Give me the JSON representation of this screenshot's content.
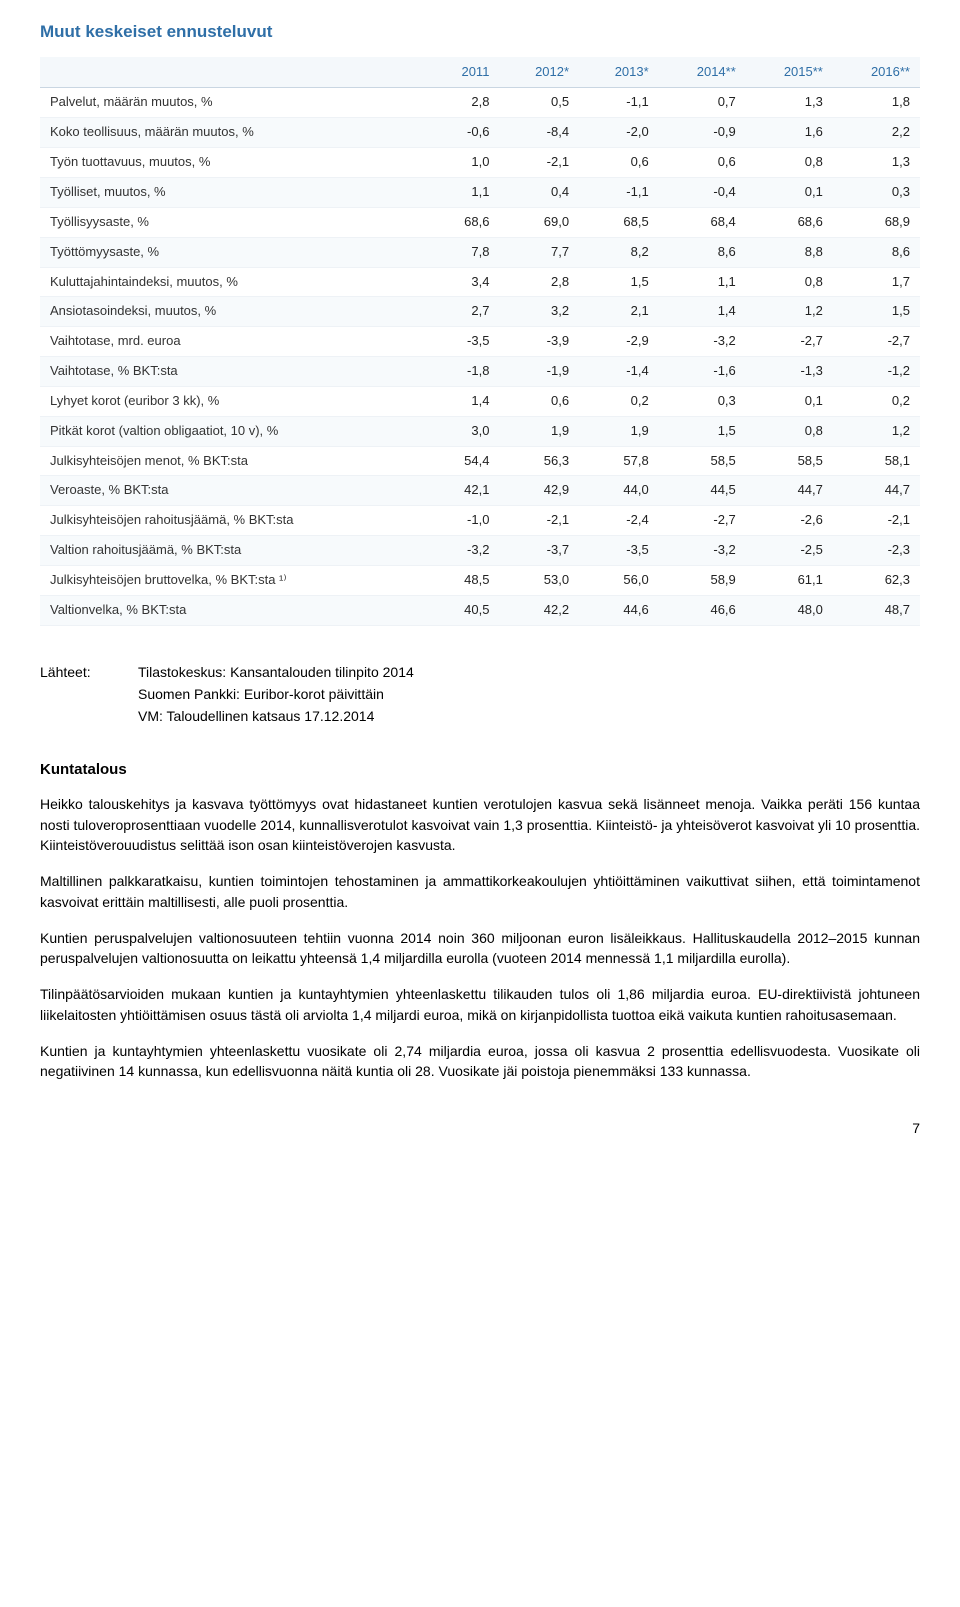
{
  "title": "Muut keskeiset ennusteluvut",
  "table": {
    "columns": [
      "",
      "2011",
      "2012*",
      "2013*",
      "2014**",
      "2015**",
      "2016**"
    ],
    "rows": [
      {
        "label": "Palvelut, määrän muutos, %",
        "vals": [
          "2,8",
          "0,5",
          "-1,1",
          "0,7",
          "1,3",
          "1,8"
        ]
      },
      {
        "label": "Koko teollisuus, määrän muutos, %",
        "vals": [
          "-0,6",
          "-8,4",
          "-2,0",
          "-0,9",
          "1,6",
          "2,2"
        ]
      },
      {
        "label": "Työn tuottavuus, muutos, %",
        "vals": [
          "1,0",
          "-2,1",
          "0,6",
          "0,6",
          "0,8",
          "1,3"
        ]
      },
      {
        "label": "Työlliset, muutos, %",
        "vals": [
          "1,1",
          "0,4",
          "-1,1",
          "-0,4",
          "0,1",
          "0,3"
        ]
      },
      {
        "label": "Työllisyysaste, %",
        "vals": [
          "68,6",
          "69,0",
          "68,5",
          "68,4",
          "68,6",
          "68,9"
        ]
      },
      {
        "label": "Työttömyysaste, %",
        "vals": [
          "7,8",
          "7,7",
          "8,2",
          "8,6",
          "8,8",
          "8,6"
        ]
      },
      {
        "label": "Kuluttajahintaindeksi, muutos, %",
        "vals": [
          "3,4",
          "2,8",
          "1,5",
          "1,1",
          "0,8",
          "1,7"
        ]
      },
      {
        "label": "Ansiotasoindeksi, muutos, %",
        "vals": [
          "2,7",
          "3,2",
          "2,1",
          "1,4",
          "1,2",
          "1,5"
        ]
      },
      {
        "label": "Vaihtotase, mrd. euroa",
        "vals": [
          "-3,5",
          "-3,9",
          "-2,9",
          "-3,2",
          "-2,7",
          "-2,7"
        ]
      },
      {
        "label": "Vaihtotase, % BKT:sta",
        "vals": [
          "-1,8",
          "-1,9",
          "-1,4",
          "-1,6",
          "-1,3",
          "-1,2"
        ]
      },
      {
        "label": "Lyhyet korot (euribor 3 kk), %",
        "vals": [
          "1,4",
          "0,6",
          "0,2",
          "0,3",
          "0,1",
          "0,2"
        ]
      },
      {
        "label": "Pitkät korot (valtion obligaatiot, 10 v), %",
        "vals": [
          "3,0",
          "1,9",
          "1,9",
          "1,5",
          "0,8",
          "1,2"
        ]
      },
      {
        "label": "Julkisyhteisöjen menot, % BKT:sta",
        "vals": [
          "54,4",
          "56,3",
          "57,8",
          "58,5",
          "58,5",
          "58,1"
        ]
      },
      {
        "label": "Veroaste, % BKT:sta",
        "vals": [
          "42,1",
          "42,9",
          "44,0",
          "44,5",
          "44,7",
          "44,7"
        ]
      },
      {
        "label": "Julkisyhteisöjen rahoitusjäämä, % BKT:sta",
        "vals": [
          "-1,0",
          "-2,1",
          "-2,4",
          "-2,7",
          "-2,6",
          "-2,1"
        ]
      },
      {
        "label": "Valtion rahoitusjäämä, % BKT:sta",
        "vals": [
          "-3,2",
          "-3,7",
          "-3,5",
          "-3,2",
          "-2,5",
          "-2,3"
        ]
      },
      {
        "label": "Julkisyhteisöjen bruttovelka, % BKT:sta ¹⁾",
        "vals": [
          "48,5",
          "53,0",
          "56,0",
          "58,9",
          "61,1",
          "62,3"
        ]
      },
      {
        "label": "Valtionvelka, % BKT:sta",
        "vals": [
          "40,5",
          "42,2",
          "44,6",
          "46,6",
          "48,0",
          "48,7"
        ]
      }
    ],
    "header_color": "#2f6fa7",
    "row_alt_bg": "#f7fafc",
    "border_color": "#eef2f6"
  },
  "sources": {
    "label": "Lähteet:",
    "items": [
      "Tilastokeskus: Kansantalouden tilinpito 2014",
      "Suomen Pankki: Euribor-korot päivittäin",
      "VM: Taloudellinen katsaus 17.12.2014"
    ]
  },
  "section_heading": "Kuntatalous",
  "paragraphs": [
    "Heikko talouskehitys ja kasvava työttömyys ovat hidastaneet kuntien verotulojen kasvua sekä lisänneet menoja. Vaikka peräti 156 kuntaa nosti tuloveroprosenttiaan vuodelle 2014, kunnallisverotulot kasvoivat vain 1,3 prosenttia. Kiinteistö- ja yhteisöverot kasvoivat yli 10 prosenttia. Kiinteistöverouudistus selittää ison osan kiinteistöverojen kasvusta.",
    "Maltillinen palkkaratkaisu, kuntien toimintojen tehostaminen ja ammattikorkeakoulujen yhtiöittäminen vaikuttivat siihen, että toimintamenot kasvoivat erittäin maltillisesti, alle puoli prosenttia.",
    "Kuntien peruspalvelujen valtionosuuteen tehtiin vuonna 2014 noin 360 miljoonan euron lisäleikkaus. Hallituskaudella 2012–2015 kunnan peruspalvelujen valtionosuutta on leikattu yhteensä 1,4 miljardilla eurolla (vuoteen 2014 mennessä 1,1 miljardilla eurolla).",
    "Tilinpäätösarvioiden mukaan kuntien ja kuntayhtymien yhteenlaskettu tilikauden tulos oli 1,86 miljardia euroa. EU-direktiivistä johtuneen liikelaitosten yhtiöittämisen osuus tästä oli arviolta 1,4 miljardi euroa, mikä on kirjanpidollista tuottoa eikä vaikuta kuntien rahoitusasemaan.",
    "Kuntien ja kuntayhtymien yhteenlaskettu vuosikate oli 2,74 miljardia euroa, jossa oli kasvua 2 prosenttia edellisvuodesta. Vuosikate oli negatiivinen 14 kunnassa, kun edellisvuonna näitä kuntia oli 28. Vuosikate jäi poistoja pienemmäksi 133 kunnassa."
  ],
  "page_number": "7"
}
